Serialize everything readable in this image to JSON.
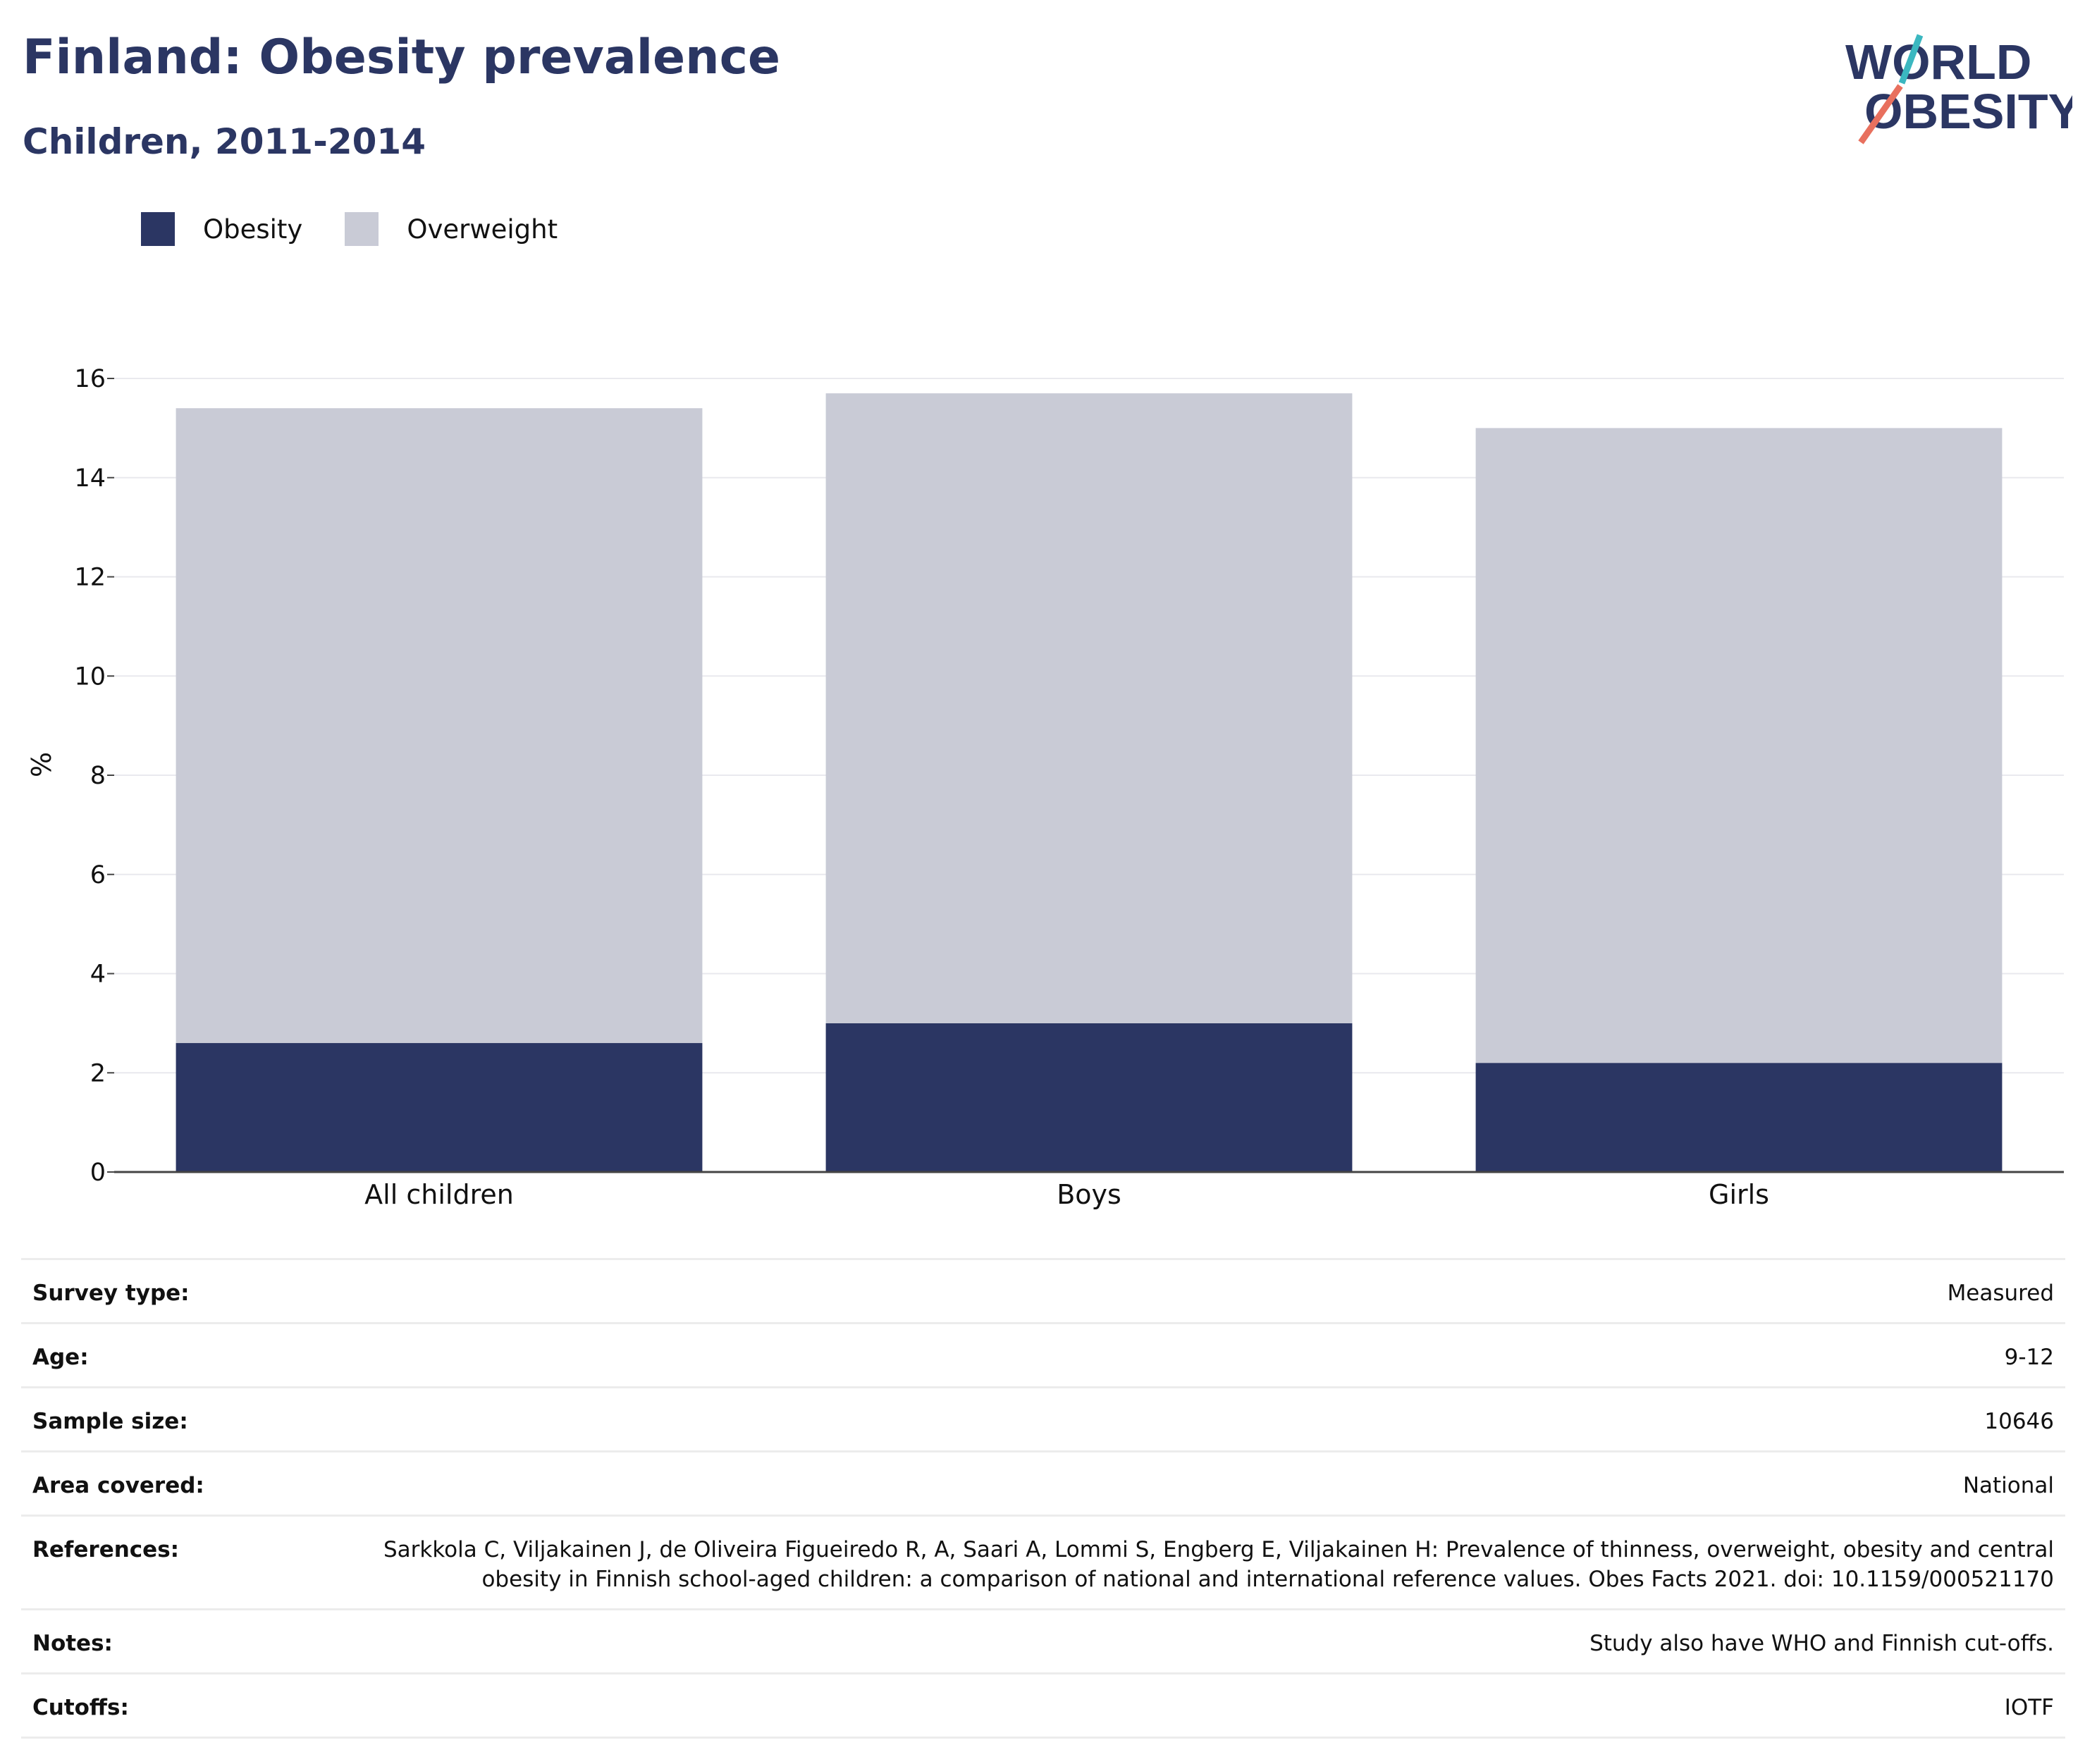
{
  "title": "Finland: Obesity prevalence",
  "subtitle": "Children, 2011-2014",
  "logo": {
    "line1": "WORLD",
    "line2": "OBESITY",
    "accent_colors": [
      "#3bb7c0",
      "#e8705e"
    ]
  },
  "chart_data": {
    "type": "bar",
    "stacked": true,
    "categories": [
      "All children",
      "Boys",
      "Girls"
    ],
    "series": [
      {
        "name": "Obesity",
        "color": "#2b3663",
        "values": [
          2.6,
          3.0,
          2.2
        ]
      },
      {
        "name": "Overweight",
        "color": "#c9cbd6",
        "values": [
          12.8,
          12.7,
          12.8
        ]
      }
    ],
    "ylabel": "%",
    "xlabel": "",
    "ylim": [
      0,
      16
    ],
    "yticks": [
      0,
      2,
      4,
      6,
      8,
      10,
      12,
      14,
      16
    ],
    "grid": true,
    "legend_position": "top-left"
  },
  "info": [
    {
      "key": "Survey type:",
      "value": "Measured"
    },
    {
      "key": "Age:",
      "value": "9-12"
    },
    {
      "key": "Sample size:",
      "value": "10646"
    },
    {
      "key": "Area covered:",
      "value": "National"
    },
    {
      "key": "References:",
      "value": "Sarkkola C, Viljakainen J, de Oliveira Figueiredo R, A, Saari A, Lommi S, Engberg E, Viljakainen H: Prevalence of thinness, overweight, obesity and central obesity in Finnish school-aged children: a comparison of national and international reference values. Obes Facts 2021. doi: 10.1159/000521170"
    },
    {
      "key": "Notes:",
      "value": "Study also have WHO and Finnish cut-offs."
    },
    {
      "key": "Cutoffs:",
      "value": "IOTF"
    }
  ]
}
